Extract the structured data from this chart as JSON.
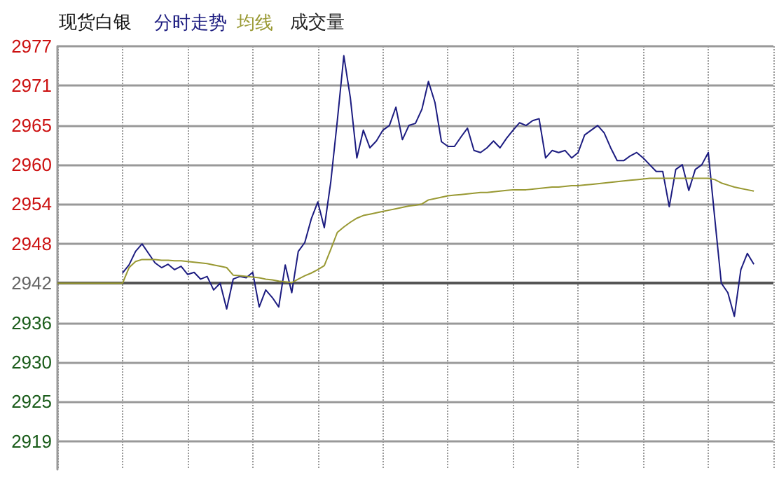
{
  "chart_data": {
    "type": "line",
    "title": "现货白银",
    "annotations": [
      "成交量"
    ],
    "categories": [
      null,
      null,
      null,
      null,
      null,
      null,
      null,
      null,
      null,
      null,
      null,
      null,
      null,
      null,
      null,
      null,
      null,
      null,
      null,
      null,
      null,
      null,
      null,
      null,
      null,
      null,
      null,
      null,
      null,
      null,
      null,
      null,
      null,
      null,
      null,
      null,
      null,
      null,
      null,
      null,
      null,
      null,
      null,
      null,
      null,
      null,
      null,
      null,
      null,
      null,
      null,
      null,
      null,
      null,
      null,
      null,
      null,
      null,
      null,
      null,
      null,
      null,
      null,
      null,
      null,
      null,
      null,
      null,
      null,
      null,
      null,
      null,
      null,
      null,
      null,
      null,
      null,
      null,
      null,
      null,
      null,
      null,
      null,
      null,
      null,
      null,
      null,
      null,
      null,
      null,
      null,
      null,
      null,
      null,
      null,
      null,
      null,
      null,
      null,
      null,
      null,
      null,
      null,
      null,
      null,
      null,
      null,
      null,
      null,
      null,
      null
    ],
    "series": [
      {
        "name": "分时走势",
        "color": "#1c1c80",
        "values": [
          null,
          null,
          null,
          null,
          null,
          null,
          null,
          null,
          null,
          null,
          2943.5,
          2944.7,
          2946.7,
          2947.8,
          2946.4,
          2945,
          2944.3,
          2944.8,
          2944,
          2944.5,
          2943.3,
          2943.6,
          2942.6,
          2943,
          2941,
          2942,
          2938.2,
          2942.6,
          2943,
          2942.8,
          2943.6,
          2938.5,
          2941,
          2939.9,
          2938.5,
          2944.7,
          2940.6,
          2946.7,
          2948,
          2951.5,
          2954,
          2950.2,
          2957,
          2966,
          2975.6,
          2969.4,
          2960.5,
          2964.6,
          2962,
          2963,
          2964.6,
          2965.3,
          2968,
          2963.2,
          2965.3,
          2965.6,
          2967.7,
          2971.8,
          2968.7,
          2962.9,
          2962.2,
          2962.2,
          2963.6,
          2964.9,
          2961.6,
          2961.3,
          2962,
          2963,
          2962,
          2963.4,
          2964.6,
          2965.7,
          2965.3,
          2966,
          2966.3,
          2960.5,
          2961.6,
          2961.3,
          2961.6,
          2960.5,
          2961.3,
          2963.9,
          2964.6,
          2965.3,
          2964.2,
          2962,
          2960.1,
          2960.1,
          2960.8,
          2961.3,
          2960.5,
          2959.5,
          2958.5,
          2958.5,
          2953.3,
          2958.8,
          2959.5,
          2955.7,
          2958.8,
          2959.5,
          2961.3,
          2951.5,
          2942,
          2940.6,
          2937.1,
          2944,
          2946.4,
          2944.8,
          null,
          null,
          null
        ]
      },
      {
        "name": "均线",
        "color": "#999933",
        "values": [
          2942,
          2942,
          2942,
          2942,
          2942,
          2942,
          2942,
          2942,
          2942,
          2942,
          2942,
          2944.3,
          2945.2,
          2945.5,
          2945.5,
          2945.5,
          2945.4,
          2945.4,
          2945.3,
          2945.3,
          2945.2,
          2945.1,
          2945,
          2944.9,
          2944.7,
          2944.5,
          2944.3,
          2943.2,
          2943.1,
          2943,
          2942.9,
          2942.8,
          2942.6,
          2942.5,
          2942.3,
          2942.2,
          2942.1,
          2942.6,
          2943.1,
          2943.5,
          2944,
          2944.6,
          2947,
          2949.5,
          2950.3,
          2951,
          2951.6,
          2952,
          2952.2,
          2952.4,
          2952.6,
          2952.8,
          2953,
          2953.2,
          2953.4,
          2953.5,
          2953.7,
          2954.3,
          2954.5,
          2954.7,
          2954.9,
          2955,
          2955.1,
          2955.2,
          2955.3,
          2955.4,
          2955.4,
          2955.5,
          2955.6,
          2955.7,
          2955.8,
          2955.8,
          2955.8,
          2955.9,
          2956,
          2956.1,
          2956.2,
          2956.2,
          2956.3,
          2956.4,
          2956.4,
          2956.5,
          2956.6,
          2956.7,
          2956.8,
          2956.9,
          2957,
          2957.1,
          2957.2,
          2957.3,
          2957.4,
          2957.5,
          2957.5,
          2957.5,
          2957.5,
          2957.5,
          2957.5,
          2957.5,
          2957.5,
          2957.5,
          2957.5,
          2957.3,
          2956.8,
          2956.5,
          2956.2,
          2956,
          2955.8,
          2955.6,
          null,
          null,
          null
        ]
      }
    ],
    "ylim": [
      2914.5,
      2977
    ],
    "yticks": [
      {
        "value": 2977,
        "label": "2977"
      },
      {
        "value": 2971.17,
        "label": "2971"
      },
      {
        "value": 2965.33,
        "label": "2965"
      },
      {
        "value": 2959.5,
        "label": "2960"
      },
      {
        "value": 2953.67,
        "label": "2954"
      },
      {
        "value": 2947.83,
        "label": "2948"
      },
      {
        "value": 2942,
        "label": "2942"
      },
      {
        "value": 2936.17,
        "label": "2936"
      },
      {
        "value": 2930.33,
        "label": "2930"
      },
      {
        "value": 2924.5,
        "label": "2925"
      },
      {
        "value": 2918.67,
        "label": "2919"
      }
    ],
    "ref_lines": [
      {
        "axis": "y",
        "value": 2942,
        "color": "#555555"
      }
    ],
    "grid": true,
    "legend": "top left",
    "line_style": "solid",
    "tick_labels": "y"
  }
}
